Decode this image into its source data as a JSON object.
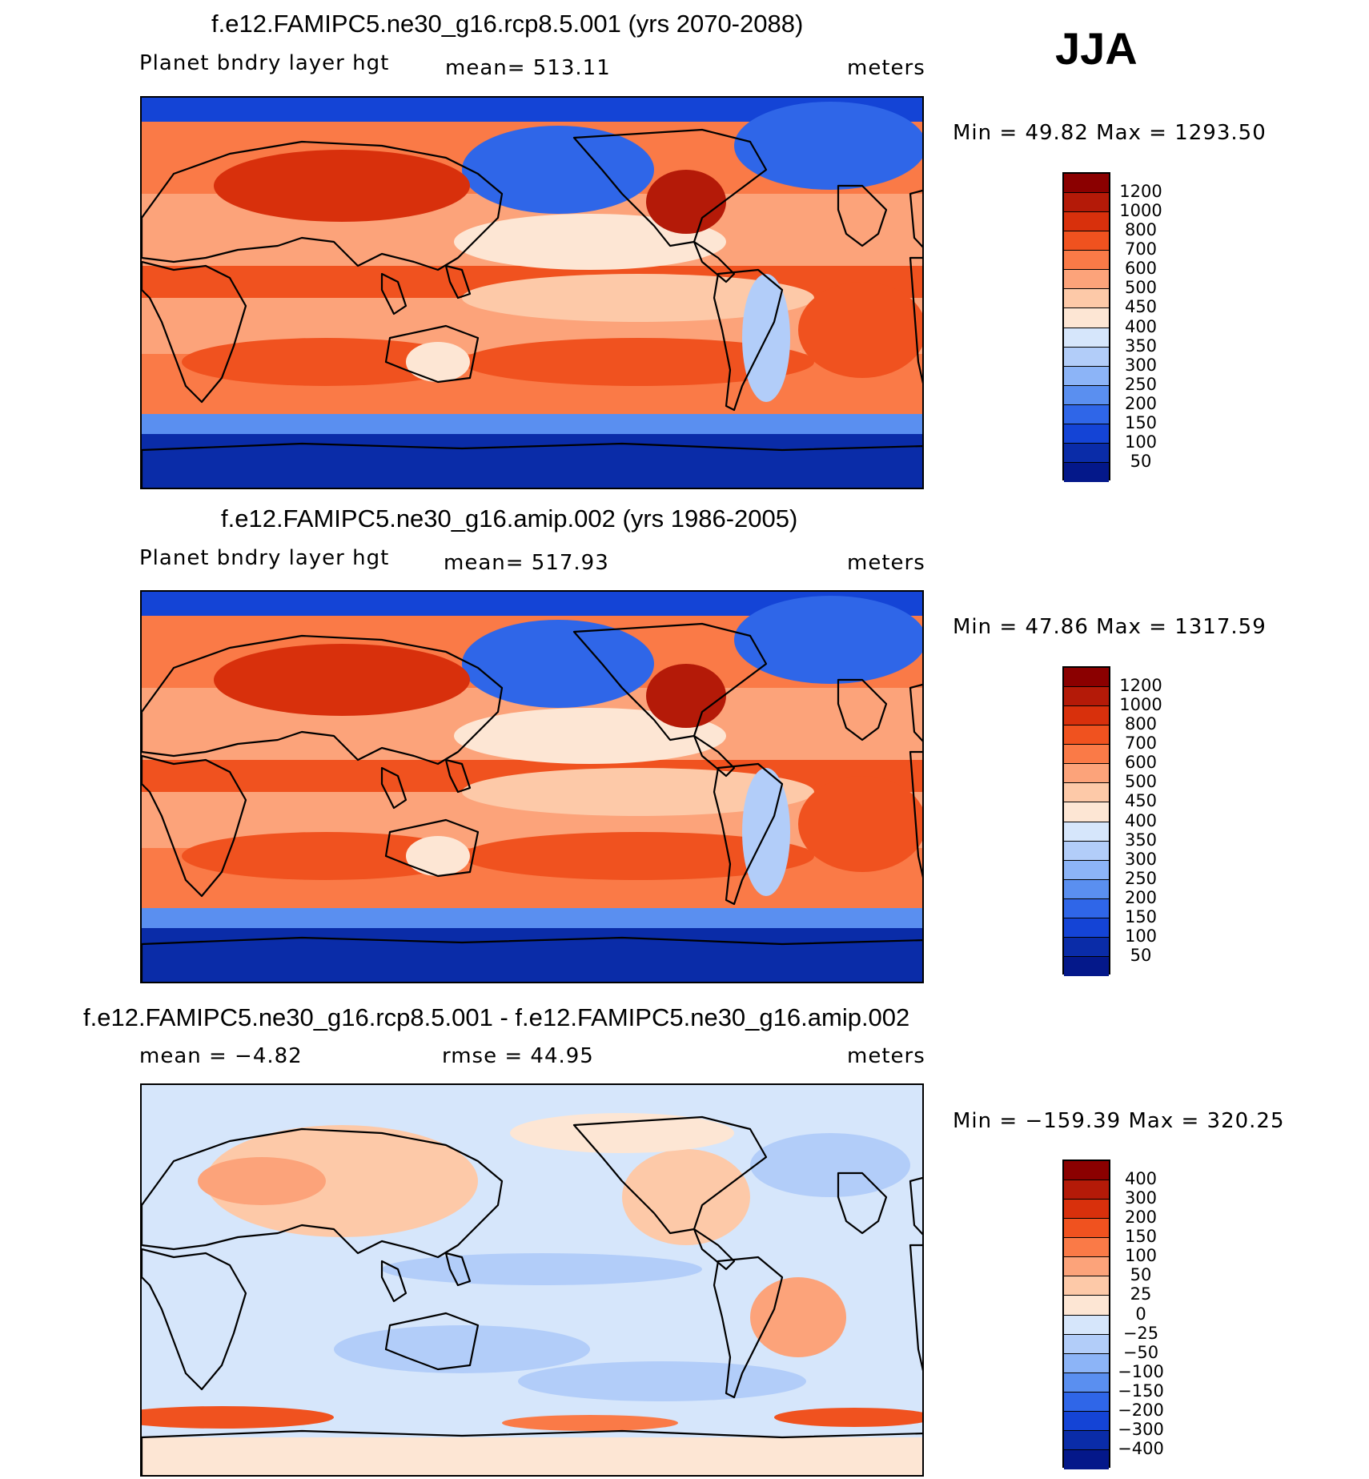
{
  "season": "JJA",
  "panels": [
    {
      "title": "f.e12.FAMIPC5.ne30_g16.rcp8.5.001 (yrs 2070-2088)",
      "left_label": "Planet bndry layer hgt",
      "center_label": "mean=  513.11",
      "units": "meters",
      "minmax": "Min =   49.82 Max = 1293.50",
      "colorbar": {
        "labels": [
          "1200",
          "1000",
          "800",
          "700",
          "600",
          "500",
          "450",
          "400",
          "350",
          "300",
          "250",
          "200",
          "150",
          "100",
          "50"
        ],
        "colors": [
          "#8b0000",
          "#b41a08",
          "#d8300c",
          "#f0521f",
          "#fa7a47",
          "#fca37a",
          "#fdc9a8",
          "#fde6d4",
          "#d6e6fb",
          "#b2cdf9",
          "#8cb4f7",
          "#5a8ff0",
          "#2f66e8",
          "#1444d6",
          "#0a2ca8",
          "#04188a"
        ]
      },
      "map": {
        "style": "mean"
      }
    },
    {
      "title": "f.e12.FAMIPC5.ne30_g16.amip.002 (yrs 1986-2005)",
      "left_label": "Planet bndry layer hgt",
      "center_label": "mean=  517.93",
      "units": "meters",
      "minmax": "Min =   47.86 Max = 1317.59",
      "colorbar": {
        "labels": [
          "1200",
          "1000",
          "800",
          "700",
          "600",
          "500",
          "450",
          "400",
          "350",
          "300",
          "250",
          "200",
          "150",
          "100",
          "50"
        ],
        "colors": [
          "#8b0000",
          "#b41a08",
          "#d8300c",
          "#f0521f",
          "#fa7a47",
          "#fca37a",
          "#fdc9a8",
          "#fde6d4",
          "#d6e6fb",
          "#b2cdf9",
          "#8cb4f7",
          "#5a8ff0",
          "#2f66e8",
          "#1444d6",
          "#0a2ca8",
          "#04188a"
        ]
      },
      "map": {
        "style": "mean"
      }
    },
    {
      "title": "f.e12.FAMIPC5.ne30_g16.rcp8.5.001 - f.e12.FAMIPC5.ne30_g16.amip.002",
      "left_label": "mean =   −4.82",
      "center_label": "rmse =    44.95",
      "units": "meters",
      "minmax": "Min = −159.39 Max =  320.25",
      "colorbar": {
        "labels": [
          "400",
          "300",
          "200",
          "150",
          "100",
          "50",
          "25",
          "0",
          "−25",
          "−50",
          "−100",
          "−150",
          "−200",
          "−300",
          "−400"
        ],
        "colors": [
          "#8b0000",
          "#b41a08",
          "#d8300c",
          "#f0521f",
          "#fa7a47",
          "#fca37a",
          "#fdc9a8",
          "#fde6d4",
          "#d6e6fb",
          "#b2cdf9",
          "#8cb4f7",
          "#5a8ff0",
          "#2f66e8",
          "#1444d6",
          "#0a2ca8",
          "#04188a"
        ]
      },
      "map": {
        "style": "diff"
      }
    }
  ]
}
